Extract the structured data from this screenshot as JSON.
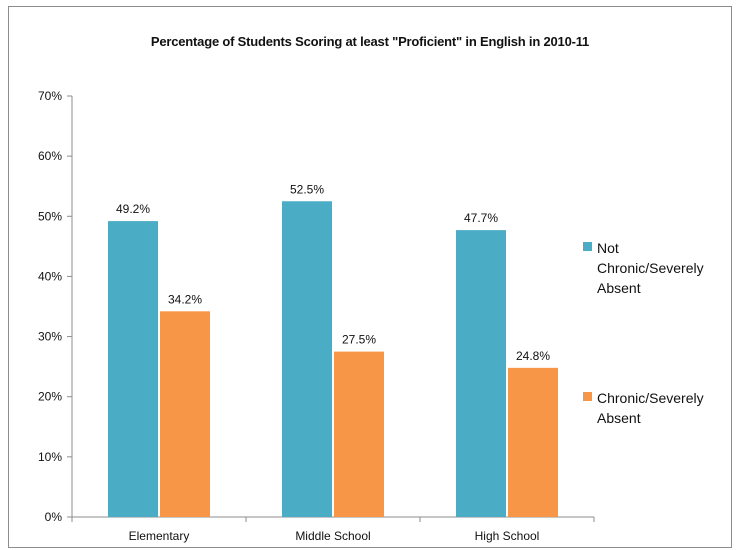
{
  "chart_data": {
    "type": "bar",
    "title": "Percentage of Students Scoring at least \"Proficient\" in English in 2010-11",
    "xlabel": "",
    "ylabel": "",
    "categories": [
      "Elementary",
      "Middle School",
      "High School"
    ],
    "series": [
      {
        "name": "Not Chronic/Severely Absent",
        "values": [
          49.2,
          52.5,
          47.7
        ],
        "labels": [
          "49.2%",
          "52.5%",
          "47.7%"
        ],
        "color": "#4BACC6"
      },
      {
        "name": "Chronic/Severely Absent",
        "values": [
          34.2,
          27.5,
          24.8
        ],
        "labels": [
          "34.2%",
          "27.5%",
          "24.8%"
        ],
        "color": "#F79646"
      }
    ],
    "ylim": [
      0,
      70
    ],
    "yticks": [
      "0%",
      "10%",
      "20%",
      "30%",
      "40%",
      "50%",
      "60%",
      "70%"
    ],
    "grid": false,
    "legend_position": "right"
  }
}
